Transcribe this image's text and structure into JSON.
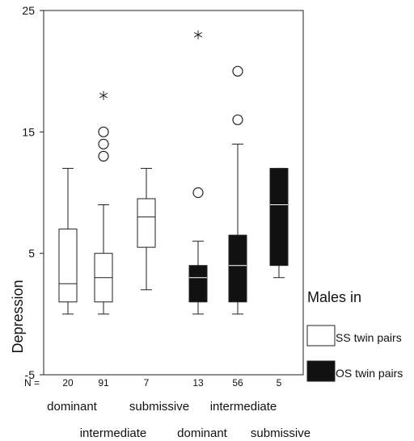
{
  "chart_data": {
    "type": "boxplot",
    "ylabel": "Depression",
    "ylim": [
      -5,
      25
    ],
    "yticks": [
      -5,
      5,
      15,
      25
    ],
    "n_prefix": "N =",
    "legend": {
      "title": "Males in",
      "placement": "right",
      "entries": [
        {
          "name": "SS twin pairs",
          "color": "#ffffff"
        },
        {
          "name": "OS twin pairs",
          "color": "#111111"
        }
      ]
    },
    "top_row_labels": [
      "dominant",
      "submissive",
      "intermediate"
    ],
    "bottom_row_labels": [
      "intermediate",
      "dominant",
      "submissive"
    ],
    "boxes": [
      {
        "group": "SS twin pairs",
        "category": "dominant",
        "n": "20",
        "whisker_low": 0,
        "q1": 1,
        "median": 2.5,
        "q3": 7,
        "whisker_high": 12,
        "outliers": [],
        "extremes": []
      },
      {
        "group": "SS twin pairs",
        "category": "intermediate",
        "n": "91",
        "whisker_low": 0,
        "q1": 1,
        "median": 3,
        "q3": 5,
        "whisker_high": 9,
        "outliers": [
          13,
          14,
          15
        ],
        "extremes": [
          18
        ]
      },
      {
        "group": "SS twin pairs",
        "category": "submissive",
        "n": "7",
        "whisker_low": 2,
        "q1": 5.5,
        "median": 8,
        "q3": 9.5,
        "whisker_high": 12,
        "outliers": [],
        "extremes": []
      },
      {
        "group": "OS twin pairs",
        "category": "dominant",
        "n": "13",
        "whisker_low": 0,
        "q1": 1,
        "median": 3,
        "q3": 4,
        "whisker_high": 6,
        "outliers": [
          10
        ],
        "extremes": [
          23
        ]
      },
      {
        "group": "OS twin pairs",
        "category": "intermediate",
        "n": "56",
        "whisker_low": 0,
        "q1": 1,
        "median": 4,
        "q3": 6.5,
        "whisker_high": 14,
        "outliers": [
          16,
          20
        ],
        "extremes": []
      },
      {
        "group": "OS twin pairs",
        "category": "submissive",
        "n": "5",
        "whisker_low": 3,
        "q1": 4,
        "median": 9,
        "q3": 12,
        "whisker_high": 12,
        "outliers": [],
        "extremes": []
      }
    ]
  }
}
